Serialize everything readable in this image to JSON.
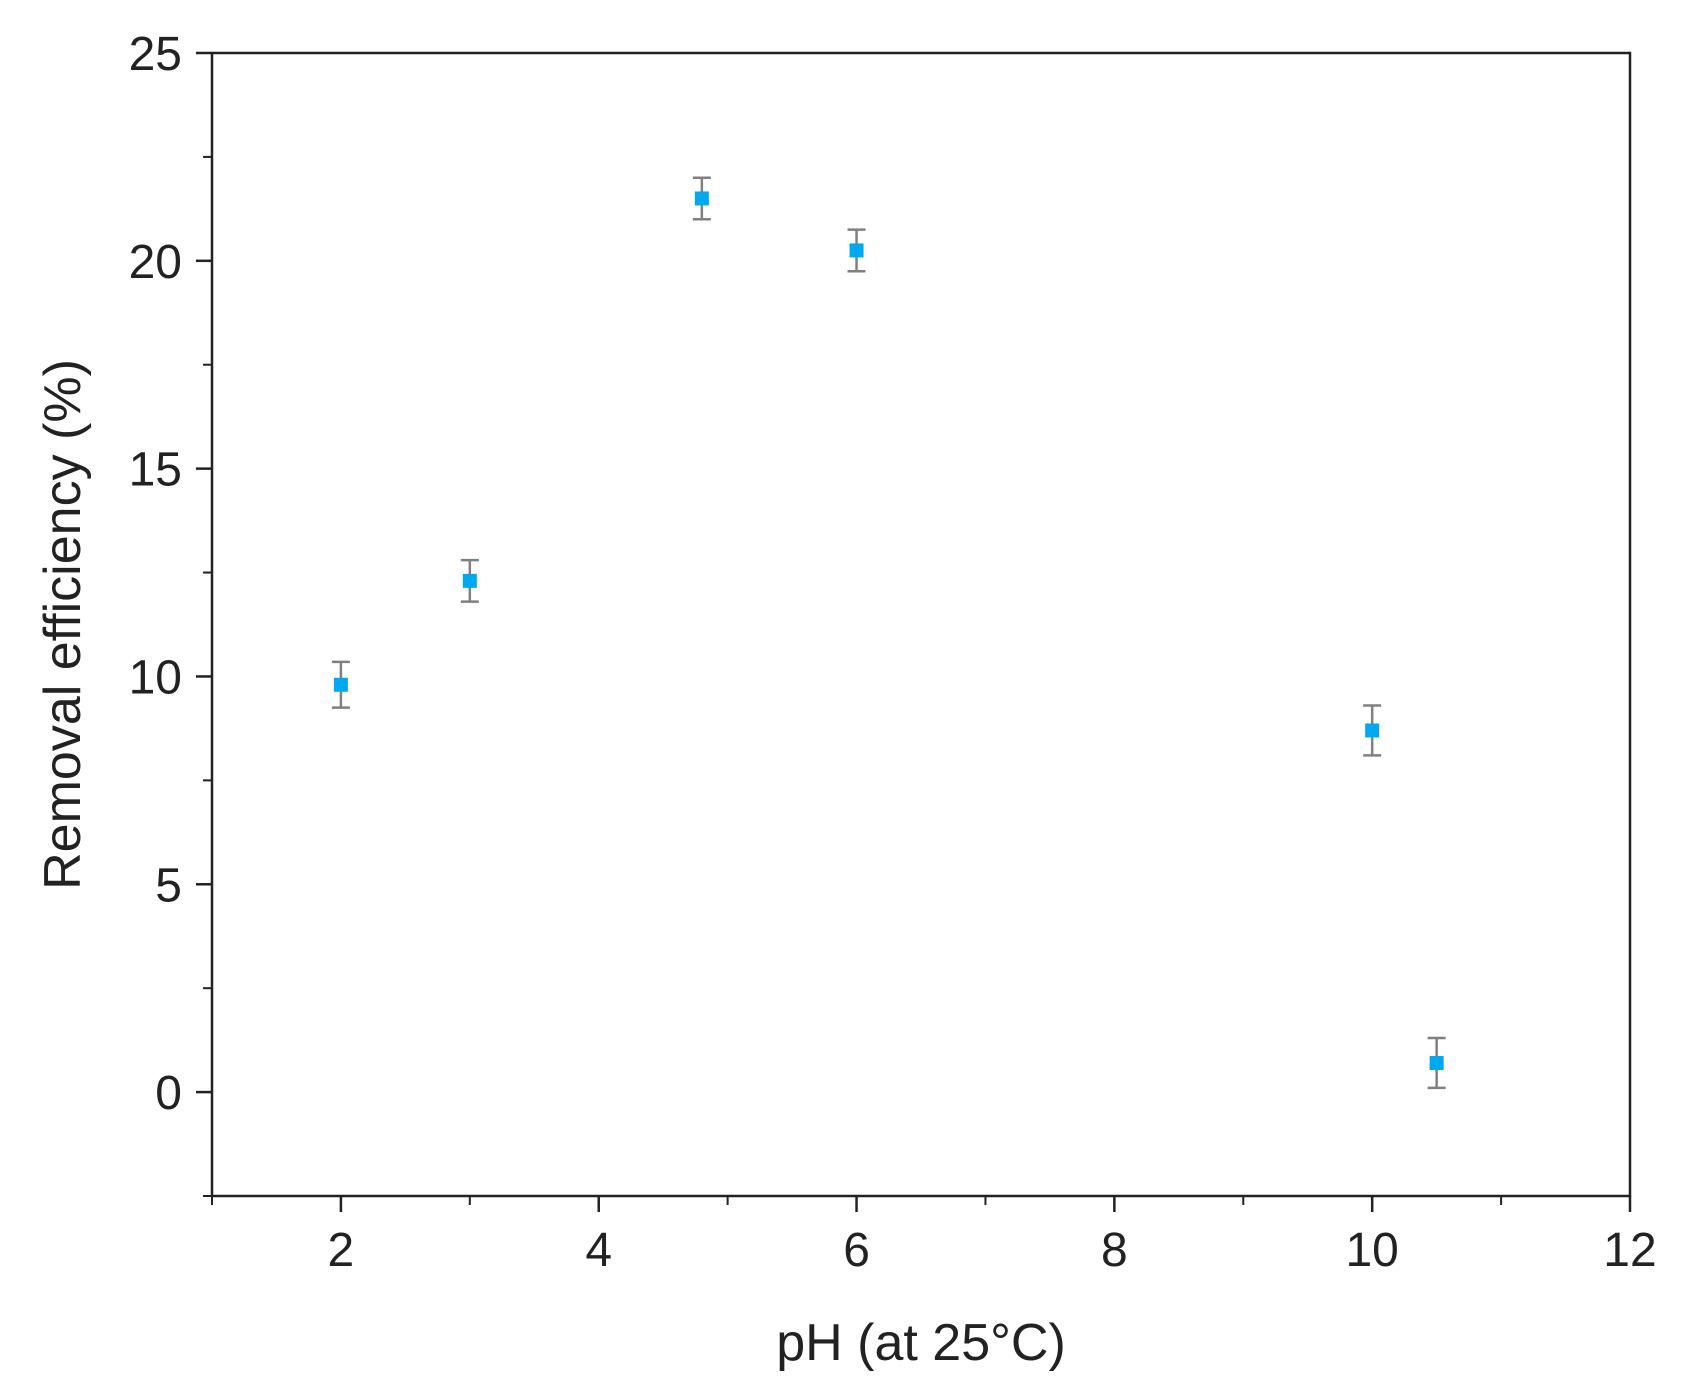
{
  "chart_data": {
    "type": "scatter",
    "title": "",
    "xlabel": "pH (at 25°C)",
    "ylabel": "Removal efficiency (%)",
    "xlim": [
      1,
      12
    ],
    "ylim": [
      -2.5,
      25
    ],
    "x_ticks": [
      2,
      4,
      6,
      8,
      10,
      12
    ],
    "x_minor_ticks": [
      1,
      3,
      5,
      7,
      9,
      11
    ],
    "y_ticks": [
      0,
      5,
      10,
      15,
      20,
      25
    ],
    "y_minor_ticks": [
      -2.5,
      2.5,
      7.5,
      12.5,
      17.5,
      22.5
    ],
    "grid": false,
    "series": [
      {
        "points": [
          {
            "x": 2.0,
            "y": 9.8,
            "err": 0.55
          },
          {
            "x": 3.0,
            "y": 12.3,
            "err": 0.5
          },
          {
            "x": 4.8,
            "y": 21.5,
            "err": 0.5
          },
          {
            "x": 6.0,
            "y": 20.25,
            "err": 0.5
          },
          {
            "x": 10.0,
            "y": 8.7,
            "err": 0.6
          },
          {
            "x": 10.5,
            "y": 0.7,
            "err": 0.6
          }
        ]
      }
    ],
    "colors": {
      "marker": "#00a8f0",
      "error_bar": "#808080",
      "axis": "#222222"
    }
  }
}
